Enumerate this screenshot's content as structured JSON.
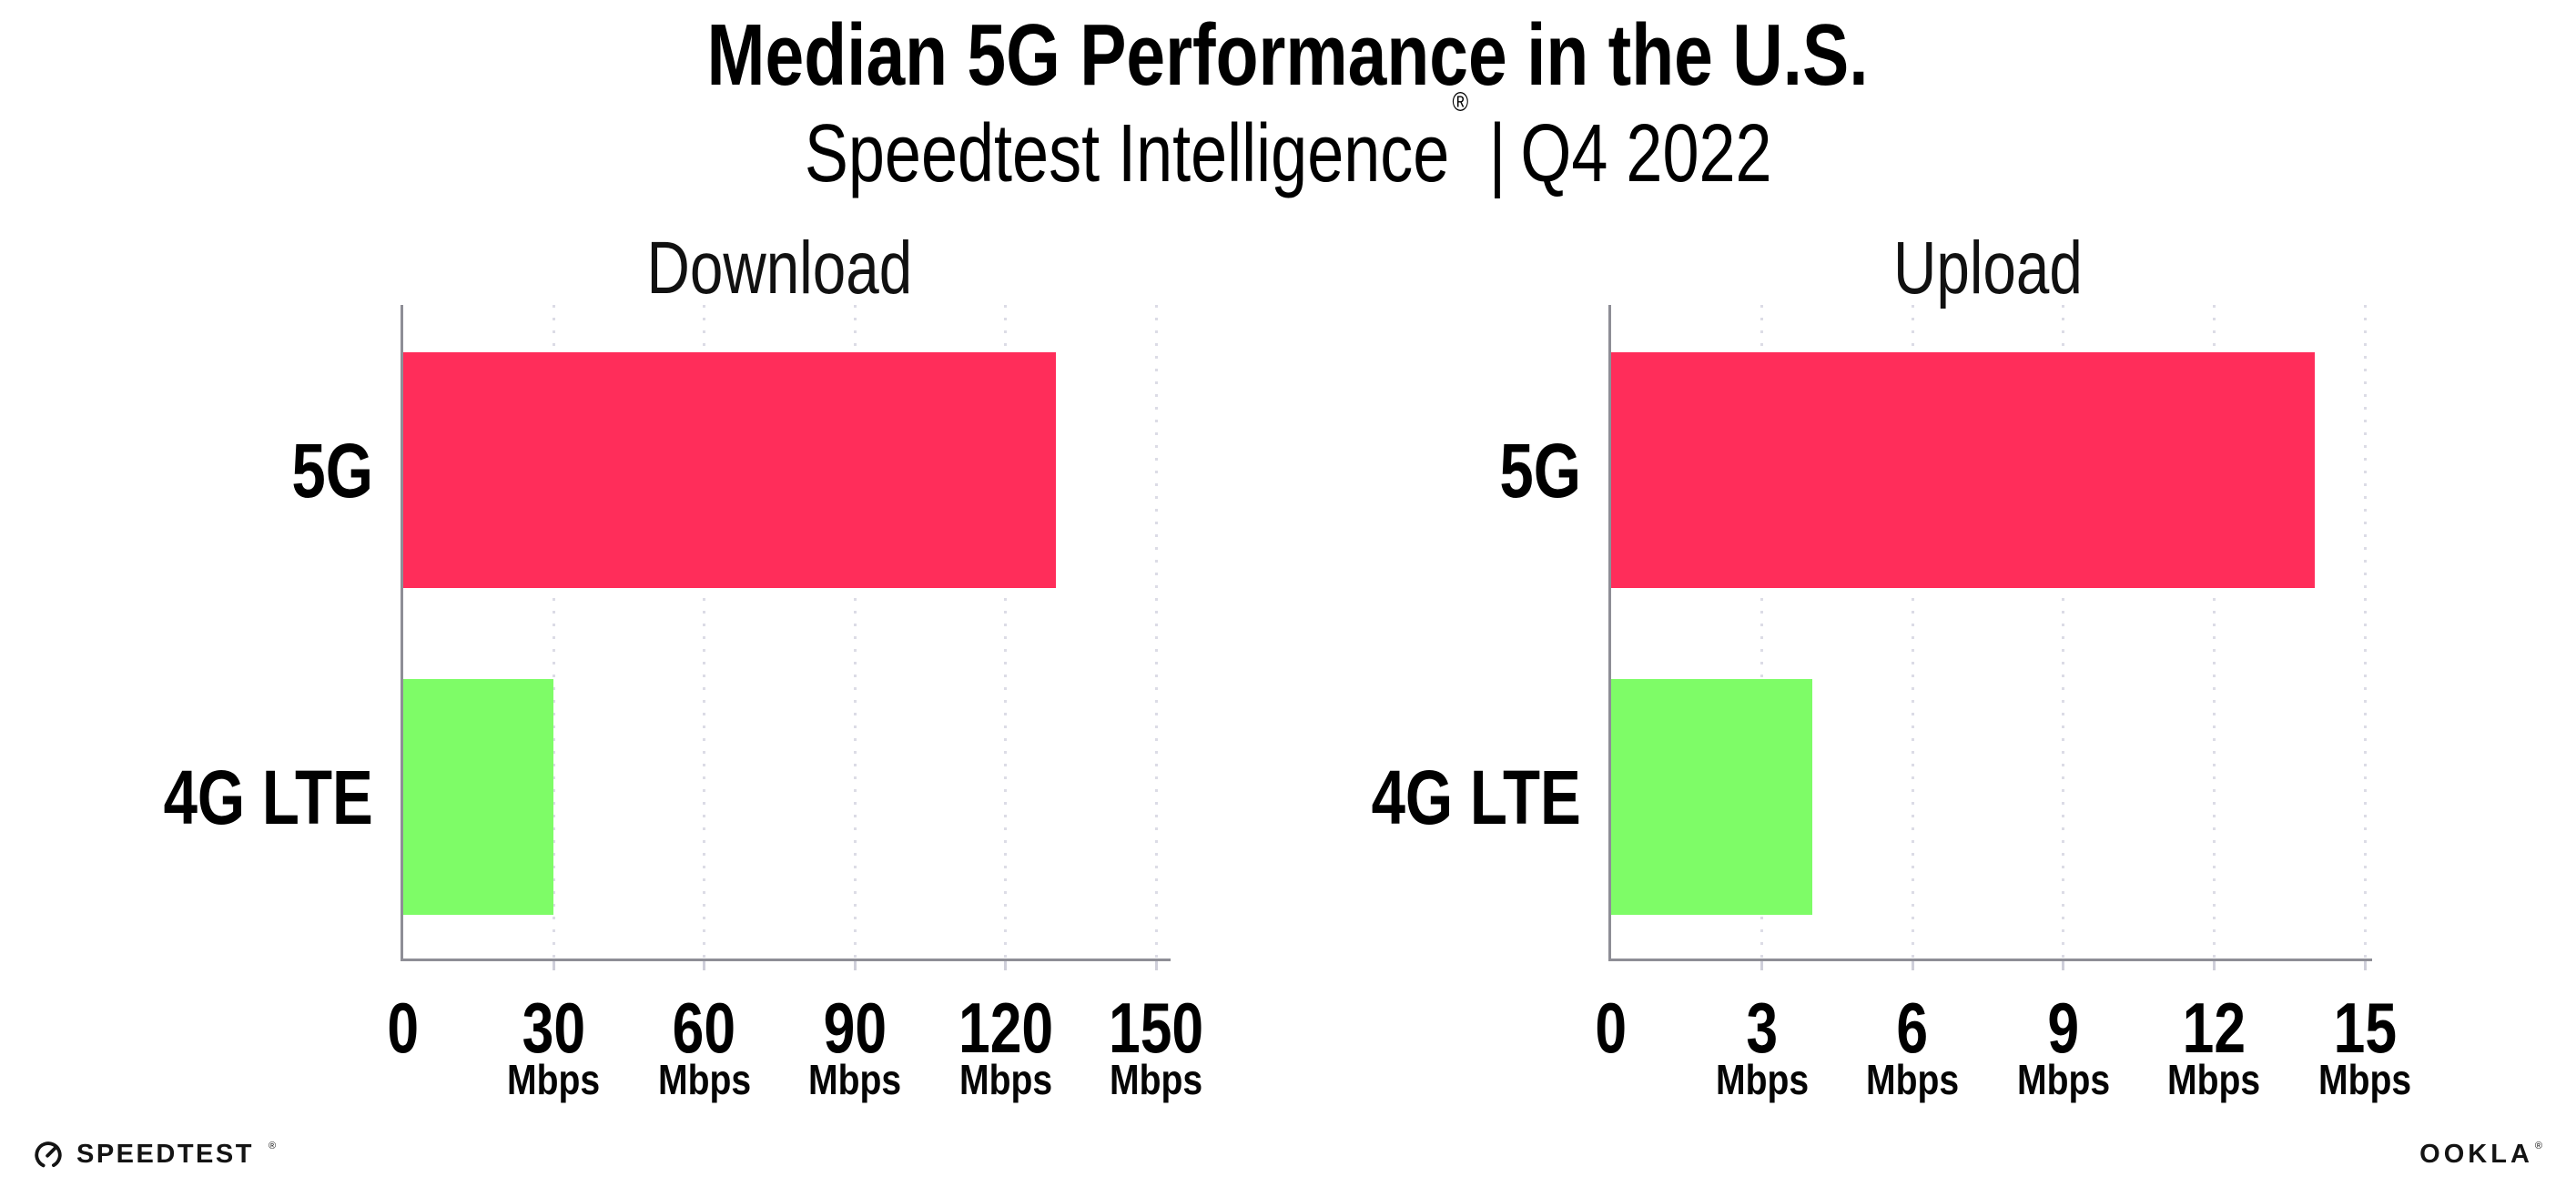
{
  "header": {
    "title": "Median 5G Performance in the U.S.",
    "subtitle_brand": "Speedtest Intelligence",
    "subtitle_registered": "®",
    "subtitle_separator": "|",
    "subtitle_period": "Q4 2022"
  },
  "colors": {
    "bar_5g": "#ff2d5a",
    "bar_4g_lte": "#7efc67",
    "axis": "#8e8e96",
    "gridline": "#dcdce6",
    "text": "#000000",
    "background": "#ffffff"
  },
  "chart_data": [
    {
      "type": "bar",
      "orientation": "horizontal",
      "title": "Download",
      "categories": [
        "5G",
        "4G LTE"
      ],
      "values": [
        130,
        30
      ],
      "value_unit": "Mbps",
      "xlim": [
        0,
        150
      ],
      "xticks": [
        0,
        30,
        60,
        90,
        120,
        150
      ],
      "tick_unit_label": "Mbps",
      "bar_colors": [
        "#ff2d5a",
        "#7efc67"
      ],
      "grid": "dotted-vertical",
      "legend": "none"
    },
    {
      "type": "bar",
      "orientation": "horizontal",
      "title": "Upload",
      "categories": [
        "5G",
        "4G LTE"
      ],
      "values": [
        14,
        4
      ],
      "value_unit": "Mbps",
      "xlim": [
        0,
        15
      ],
      "xticks": [
        0,
        3,
        6,
        9,
        12,
        15
      ],
      "tick_unit_label": "Mbps",
      "bar_colors": [
        "#ff2d5a",
        "#7efc67"
      ],
      "grid": "dotted-vertical",
      "legend": "none"
    }
  ],
  "footer": {
    "speedtest_label": "SPEEDTEST",
    "speedtest_registered": "®",
    "speedtest_icon": "speedtest-gauge-icon",
    "ookla_label": "OOKLA",
    "ookla_registered": "®"
  }
}
